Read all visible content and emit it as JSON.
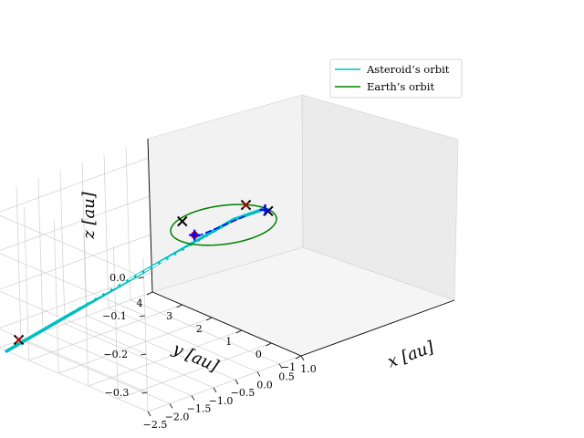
{
  "chart_data": {
    "type": "line3d",
    "xlabel": "x [au]",
    "ylabel": "y [au]",
    "zlabel": "z [au]",
    "xlim": [
      -2.5,
      1.0
    ],
    "ylim": [
      -1,
      4
    ],
    "zlim": [
      -0.35,
      0.05
    ],
    "x_ticks": [
      "−2.5",
      "−2.0",
      "−1.5",
      "−1.0",
      "−0.5",
      "0.0",
      "0.5",
      "1.0"
    ],
    "y_ticks": [
      "−1",
      "0",
      "1",
      "2",
      "3",
      "4"
    ],
    "z_ticks": [
      "−0.3",
      "−0.2",
      "−0.1",
      "0.0"
    ],
    "grid": true,
    "legend_position": "top-right",
    "legend": [
      {
        "label": "Asteroid’s orbit",
        "color": "#00bfbf"
      },
      {
        "label": "Earth’s orbit",
        "color": "#008000"
      }
    ],
    "series": [
      {
        "name": "Asteroid’s orbit",
        "color": "#00bfbf",
        "style": "solid",
        "points": [
          [
            -2.4,
            3.9,
            -0.36
          ],
          [
            0.5,
            0.4,
            -0.02
          ],
          [
            0.95,
            0.05,
            0.0
          ]
        ]
      },
      {
        "name": "",
        "color": "#0000ff",
        "style": "dashed",
        "points": [
          [
            0.0,
            0.9,
            -0.06
          ],
          [
            0.6,
            0.2,
            -0.01
          ]
        ]
      },
      {
        "name": "",
        "color": "#ffffff",
        "style": "dashed",
        "points": [
          [
            -2.3,
            3.7,
            -0.33
          ],
          [
            0.3,
            0.5,
            -0.04
          ]
        ]
      },
      {
        "name": "Earth’s orbit",
        "color": "#008000",
        "style": "solid",
        "type": "ellipse",
        "center": [
          0,
          0,
          0
        ],
        "radius": 1.0
      }
    ],
    "markers": [
      {
        "x": -2.25,
        "y": 3.7,
        "z": -0.33,
        "symbol": "x",
        "color": "#000000"
      },
      {
        "x": -2.25,
        "y": 3.7,
        "z": -0.33,
        "symbol": "x",
        "color": "#cc0000"
      },
      {
        "x": -0.3,
        "y": 0.95,
        "z": -0.01,
        "symbol": "x",
        "color": "#000000"
      },
      {
        "x": 0.95,
        "y": -0.1,
        "z": 0.0,
        "symbol": "x",
        "color": "#000000"
      },
      {
        "x": 0.85,
        "y": 0.5,
        "z": 0.0,
        "symbol": "x",
        "color": "#000000"
      },
      {
        "x": 0.85,
        "y": 0.5,
        "z": 0.0,
        "symbol": "x",
        "color": "#cc0000"
      },
      {
        "x": 0.0,
        "y": 1.0,
        "z": -0.06,
        "symbol": "dot",
        "color": "#cc0000"
      },
      {
        "x": 0.0,
        "y": 1.0,
        "z": -0.06,
        "symbol": "plus",
        "color": "#0000ff"
      },
      {
        "x": 0.95,
        "y": 0.0,
        "z": 0.0,
        "symbol": "plus",
        "color": "#0000ff"
      }
    ]
  }
}
